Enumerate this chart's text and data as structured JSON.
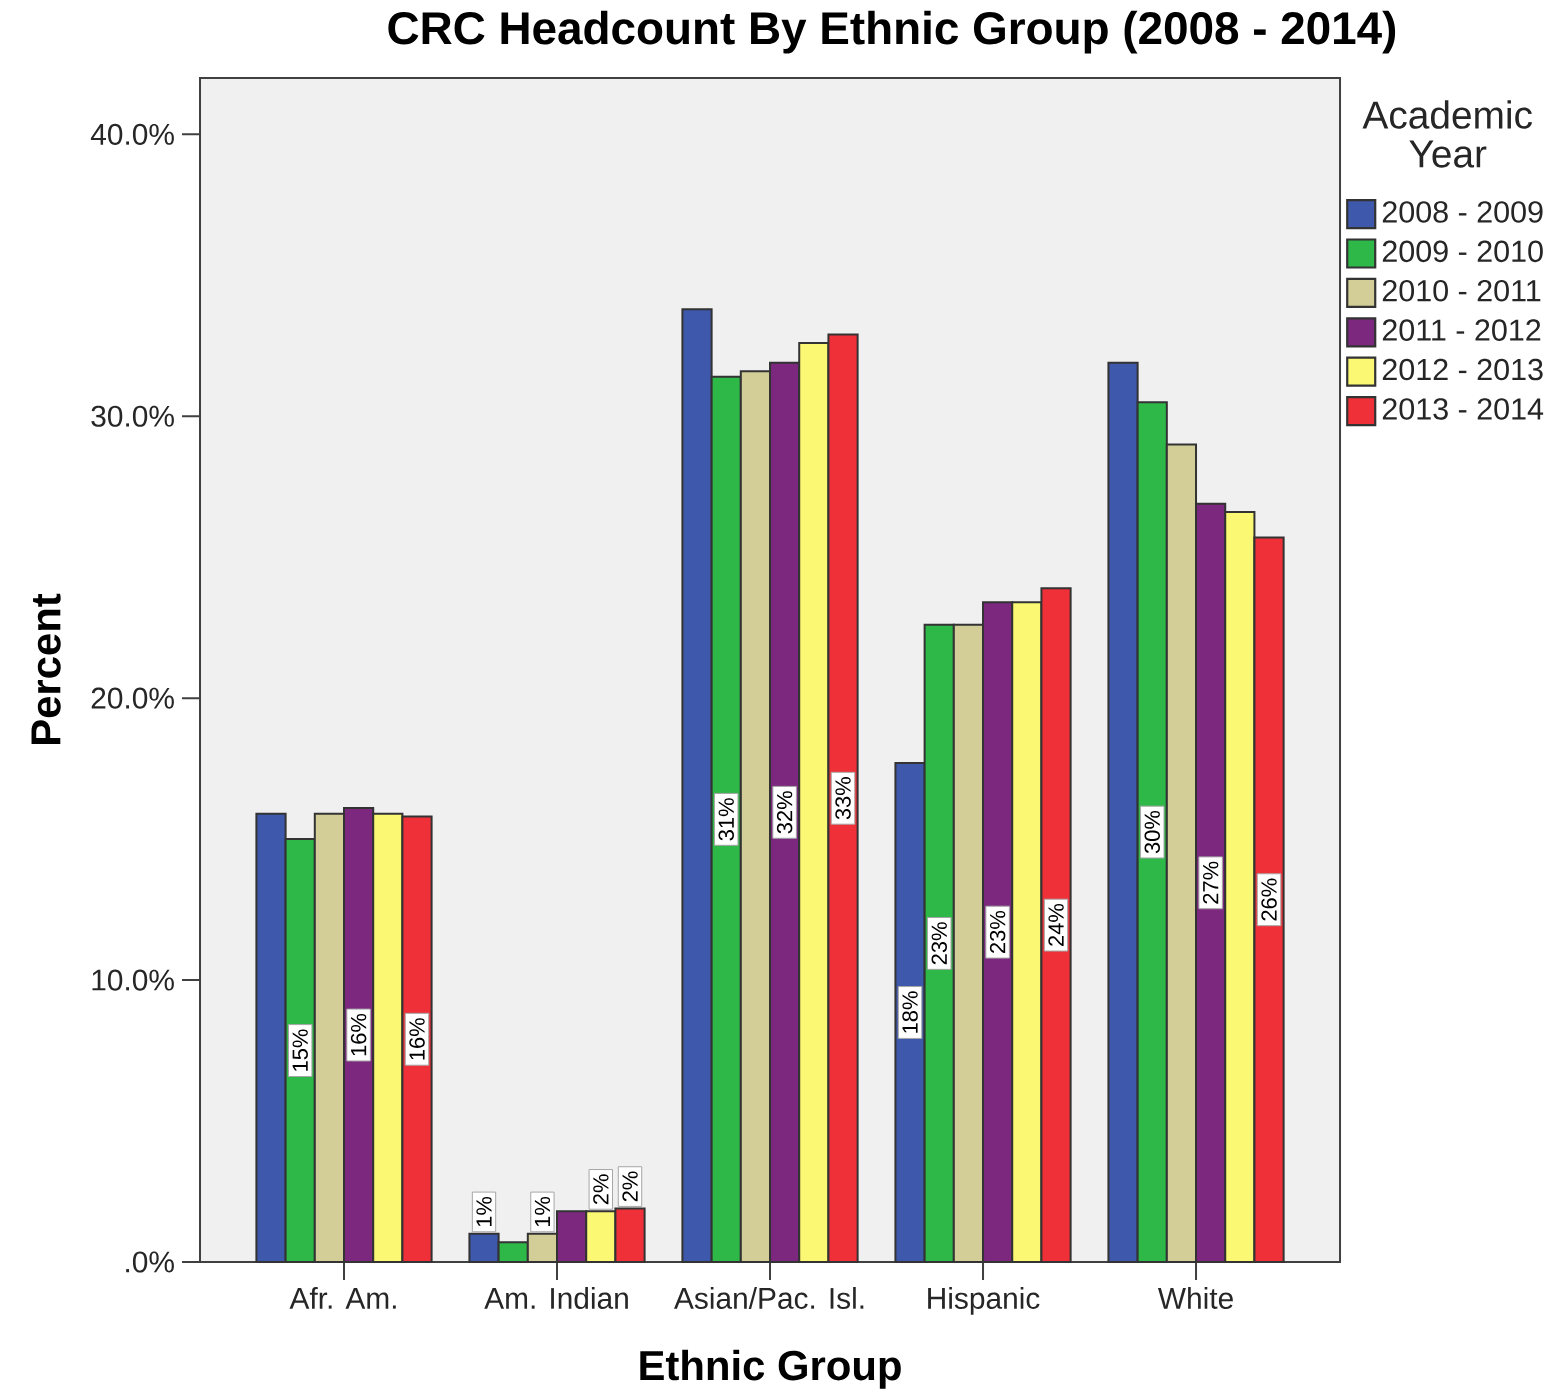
{
  "chart_data": {
    "type": "bar",
    "title": "CRC Headcount By Ethnic Group (2008 - 2014)",
    "xlabel": "Ethnic Group",
    "ylabel": "Percent",
    "legend_title": "Academic Year",
    "legend": "right",
    "categories": [
      "Afr. Am.",
      "Am. Indian",
      "Asian/Pac. Isl.",
      "Hispanic",
      "White"
    ],
    "ylim": [
      0,
      42
    ],
    "yticks": [
      {
        "value": 0,
        "label": ".0%"
      },
      {
        "value": 10,
        "label": "10.0%"
      },
      {
        "value": 20,
        "label": "20.0%"
      },
      {
        "value": 30,
        "label": "30.0%"
      },
      {
        "value": 40,
        "label": "40.0%"
      }
    ],
    "series": [
      {
        "name": "2008 - 2009",
        "color": "#3e58ac",
        "values": [
          15.9,
          1.0,
          33.8,
          17.7,
          31.9
        ],
        "value_labels": [
          null,
          "1%",
          null,
          "18%",
          null
        ]
      },
      {
        "name": "2009 - 2010",
        "color": "#2eb848",
        "values": [
          15.0,
          0.7,
          31.4,
          22.6,
          30.5
        ],
        "value_labels": [
          "15%",
          null,
          "31%",
          "23%",
          "30%"
        ]
      },
      {
        "name": "2010 - 2011",
        "color": "#d3ce97",
        "values": [
          15.9,
          1.0,
          31.6,
          22.6,
          29.0
        ],
        "value_labels": [
          null,
          "1%",
          null,
          null,
          null
        ]
      },
      {
        "name": "2011 - 2012",
        "color": "#7b287e",
        "values": [
          16.1,
          1.8,
          31.9,
          23.4,
          26.9
        ],
        "value_labels": [
          "16%",
          null,
          "32%",
          "23%",
          "27%"
        ]
      },
      {
        "name": "2012 - 2013",
        "color": "#fbf873",
        "values": [
          15.9,
          1.8,
          32.6,
          23.4,
          26.6
        ],
        "value_labels": [
          null,
          "2%",
          null,
          null,
          null
        ]
      },
      {
        "name": "2013 - 2014",
        "color": "#ef3038",
        "values": [
          15.8,
          1.9,
          32.9,
          23.9,
          25.7
        ],
        "value_labels": [
          "16%",
          "2%",
          "33%",
          "24%",
          "26%"
        ]
      }
    ]
  }
}
